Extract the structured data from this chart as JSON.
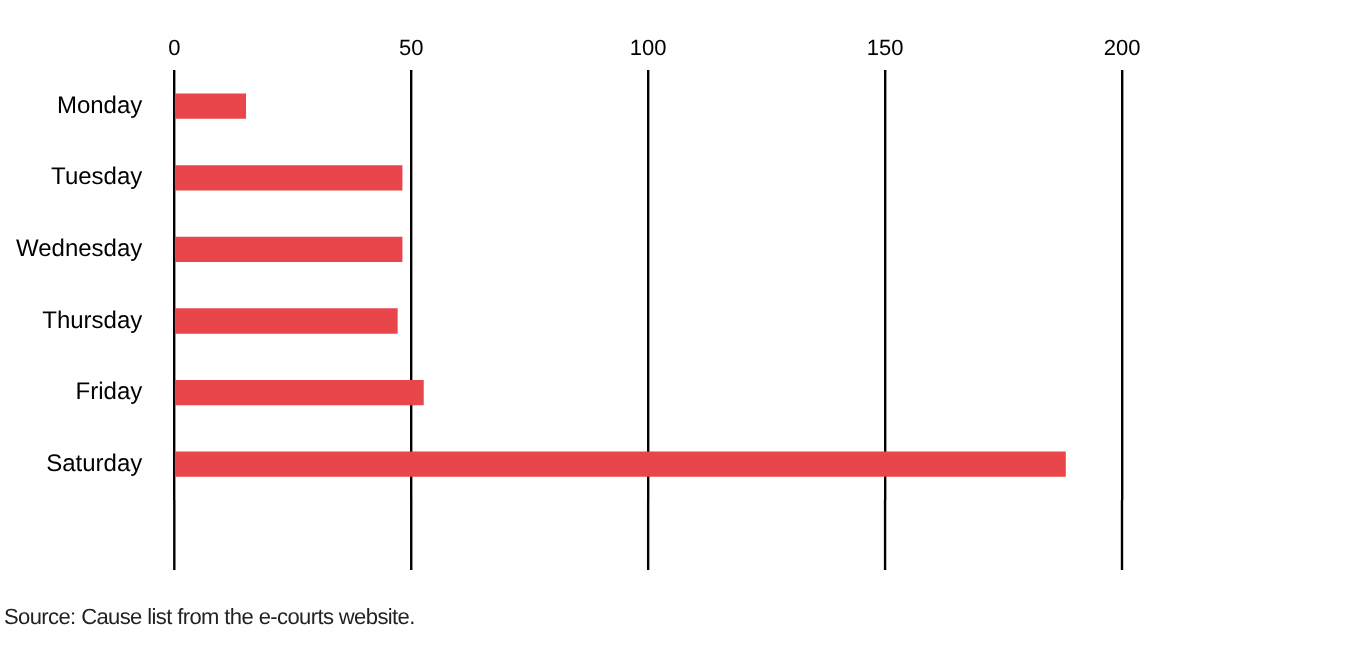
{
  "chart_data": {
    "type": "bar",
    "orientation": "horizontal",
    "categories": [
      "Monday",
      "Tuesday",
      "Wednesday",
      "Thursday",
      "Friday",
      "Saturday"
    ],
    "values": [
      15,
      48,
      48,
      47,
      52.5,
      188
    ],
    "color": "#e8464a",
    "xlim": [
      0,
      200
    ],
    "xticks": [
      0,
      50,
      100,
      150,
      200
    ],
    "grid": "x",
    "annotations": [
      "Source: Cause list from the e-courts website."
    ]
  }
}
